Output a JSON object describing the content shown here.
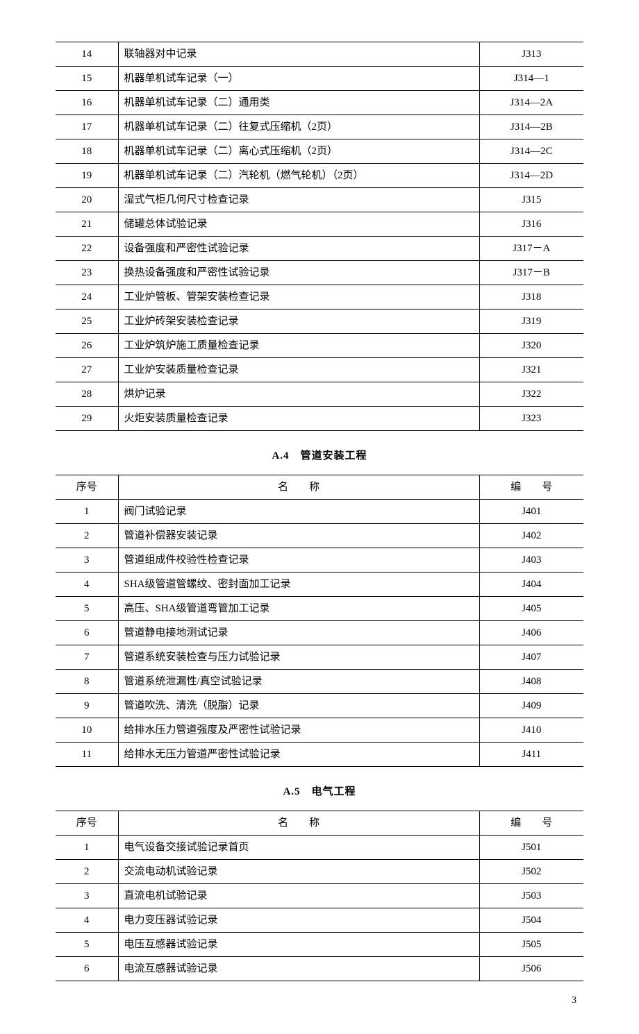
{
  "table1": {
    "rows": [
      {
        "seq": "14",
        "name": "联轴器对中记录",
        "code": "J313"
      },
      {
        "seq": "15",
        "name": "机器单机试车记录（一）",
        "code": "J314—1"
      },
      {
        "seq": "16",
        "name": "机器单机试车记录（二）通用类",
        "code": "J314—2A"
      },
      {
        "seq": "17",
        "name": "机器单机试车记录（二）往复式压缩机（2页）",
        "code": "J314—2B"
      },
      {
        "seq": "18",
        "name": "机器单机试车记录（二）离心式压缩机（2页）",
        "code": "J314—2C"
      },
      {
        "seq": "19",
        "name": "机器单机试车记录（二）汽轮机（燃气轮机）（2页）",
        "code": "J314—2D"
      },
      {
        "seq": "20",
        "name": "湿式气柜几何尺寸检查记录",
        "code": "J315"
      },
      {
        "seq": "21",
        "name": "储罐总体试验记录",
        "code": "J316"
      },
      {
        "seq": "22",
        "name": "设备强度和严密性试验记录",
        "code": "J317－A"
      },
      {
        "seq": "23",
        "name": "换热设备强度和严密性试验记录",
        "code": "J317－B"
      },
      {
        "seq": "24",
        "name": "工业炉管板、管架安装检查记录",
        "code": "J318"
      },
      {
        "seq": "25",
        "name": "工业炉砖架安装检查记录",
        "code": "J319"
      },
      {
        "seq": "26",
        "name": "工业炉筑炉施工质量检查记录",
        "code": "J320"
      },
      {
        "seq": "27",
        "name": "工业炉安装质量检查记录",
        "code": "J321"
      },
      {
        "seq": "28",
        "name": "烘炉记录",
        "code": "J322"
      },
      {
        "seq": "29",
        "name": "火炬安装质量检查记录",
        "code": "J323"
      }
    ]
  },
  "section2": {
    "heading": "A.4　管道安装工程",
    "header": {
      "seq": "序号",
      "name": "名　　称",
      "code": "编　　号"
    },
    "rows": [
      {
        "seq": "1",
        "name": "阀门试验记录",
        "code": "J401"
      },
      {
        "seq": "2",
        "name": "管道补偿器安装记录",
        "code": "J402"
      },
      {
        "seq": "3",
        "name": "管道组成件校验性检查记录",
        "code": "J403"
      },
      {
        "seq": "4",
        "name": "SHA级管道管螺纹、密封面加工记录",
        "code": "J404"
      },
      {
        "seq": "5",
        "name": "高压、SHA级管道弯管加工记录",
        "code": "J405"
      },
      {
        "seq": "6",
        "name": "管道静电接地测试记录",
        "code": "J406"
      },
      {
        "seq": "7",
        "name": "管道系统安装检查与压力试验记录",
        "code": "J407"
      },
      {
        "seq": "8",
        "name": "管道系统泄漏性/真空试验记录",
        "code": "J408"
      },
      {
        "seq": "9",
        "name": "管道吹洗、清洗（脱脂）记录",
        "code": "J409"
      },
      {
        "seq": "10",
        "name": "给排水压力管道强度及严密性试验记录",
        "code": "J410"
      },
      {
        "seq": "11",
        "name": "给排水无压力管道严密性试验记录",
        "code": "J411"
      }
    ]
  },
  "section3": {
    "heading": "A.5　电气工程",
    "header": {
      "seq": "序号",
      "name": "名　　称",
      "code": "编　　号"
    },
    "rows": [
      {
        "seq": "1",
        "name": "电气设备交接试验记录首页",
        "code": "J501"
      },
      {
        "seq": "2",
        "name": "交流电动机试验记录",
        "code": "J502"
      },
      {
        "seq": "3",
        "name": "直流电机试验记录",
        "code": "J503"
      },
      {
        "seq": "4",
        "name": "电力变压器试验记录",
        "code": "J504"
      },
      {
        "seq": "5",
        "name": "电压互感器试验记录",
        "code": "J505"
      },
      {
        "seq": "6",
        "name": "电流互感器试验记录",
        "code": "J506"
      }
    ]
  },
  "page_number": "3"
}
